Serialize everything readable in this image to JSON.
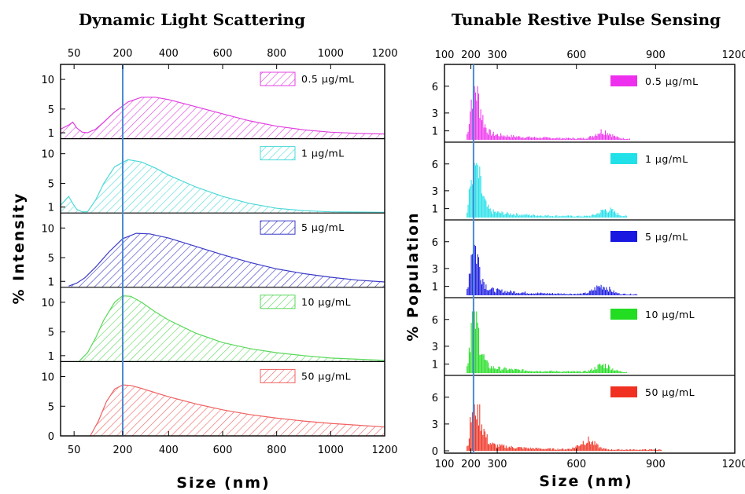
{
  "chart_data": [
    {
      "type": "area",
      "title": "Dynamic Light Scattering",
      "xlabel": "Size (nm)",
      "ylabel": "% Intensity",
      "x_ticks_bottom": [
        "50",
        "200",
        "400",
        "600",
        "800",
        "1000",
        "1200"
      ],
      "x_ticks_top": [
        "50",
        "200",
        "400",
        "600",
        "800",
        "1000",
        "1200"
      ],
      "x_tick_values": [
        50,
        230,
        400,
        600,
        800,
        1000,
        1200
      ],
      "xlim": [
        0,
        1200
      ],
      "reference_line_x": 230,
      "grid": false,
      "legend_placement": "top-right of each subpanel",
      "series": [
        {
          "name": "0.5 µg/mL",
          "color": "#e040e0",
          "y_ticks": [
            "1",
            "5",
            "10"
          ],
          "ylim": [
            0,
            12
          ],
          "x": [
            0,
            30,
            45,
            60,
            80,
            100,
            130,
            160,
            200,
            250,
            300,
            350,
            400,
            500,
            600,
            700,
            800,
            900,
            1000,
            1100,
            1200
          ],
          "values": [
            1.6,
            2.3,
            2.8,
            1.8,
            1.1,
            1.0,
            1.6,
            2.8,
            4.5,
            6.2,
            7.0,
            7.0,
            6.6,
            5.4,
            4.2,
            3.0,
            2.1,
            1.5,
            1.1,
            0.9,
            0.8
          ]
        },
        {
          "name": "1 µg/mL",
          "color": "#4dd8d8",
          "y_ticks": [
            "1",
            "5",
            "10"
          ],
          "ylim": [
            0,
            12
          ],
          "x": [
            0,
            20,
            30,
            45,
            60,
            80,
            100,
            130,
            160,
            200,
            250,
            300,
            350,
            400,
            500,
            600,
            700,
            800,
            900,
            1000,
            1200
          ],
          "values": [
            1.3,
            2.3,
            2.8,
            1.6,
            0.6,
            0.2,
            0.2,
            2.2,
            5.0,
            7.8,
            9.0,
            8.6,
            7.6,
            6.4,
            4.4,
            2.8,
            1.6,
            0.8,
            0.4,
            0.2,
            0.1
          ]
        },
        {
          "name": "5 µg/mL",
          "color": "#3a3ac8",
          "y_ticks": [
            "1",
            "5",
            "10"
          ],
          "ylim": [
            0,
            12
          ],
          "x": [
            30,
            60,
            90,
            130,
            180,
            230,
            280,
            330,
            400,
            500,
            600,
            700,
            800,
            900,
            1000,
            1100,
            1200
          ],
          "values": [
            0.2,
            0.7,
            1.6,
            3.4,
            6.0,
            8.2,
            9.1,
            9.0,
            8.3,
            6.9,
            5.5,
            4.2,
            3.1,
            2.3,
            1.7,
            1.2,
            0.9
          ]
        },
        {
          "name": "10 µg/mL",
          "color": "#5ad85a",
          "y_ticks": [
            "1",
            "5",
            "10"
          ],
          "ylim": [
            0,
            12
          ],
          "x": [
            70,
            100,
            130,
            160,
            200,
            230,
            260,
            300,
            350,
            400,
            500,
            600,
            700,
            800,
            900,
            1000,
            1100,
            1200
          ],
          "values": [
            0.1,
            1.5,
            4.0,
            7.0,
            10.0,
            11.1,
            11.0,
            10.0,
            8.4,
            7.0,
            4.8,
            3.2,
            2.2,
            1.5,
            1.0,
            0.6,
            0.4,
            0.2
          ]
        },
        {
          "name": "50 µg/mL",
          "color": "#f06060",
          "y_ticks": [
            "0",
            "5",
            "10"
          ],
          "ylim": [
            0,
            12
          ],
          "x": [
            110,
            140,
            170,
            200,
            230,
            260,
            300,
            350,
            400,
            500,
            600,
            700,
            800,
            900,
            1000,
            1100,
            1200
          ],
          "values": [
            0.0,
            2.5,
            5.8,
            7.9,
            8.6,
            8.5,
            8.0,
            7.3,
            6.6,
            5.4,
            4.4,
            3.6,
            3.0,
            2.5,
            2.1,
            1.8,
            1.5
          ]
        }
      ]
    },
    {
      "type": "bar",
      "title": "Tunable Restive Pulse Sensing",
      "xlabel": "Size (nm)",
      "ylabel": "% Population",
      "x_ticks_bottom": [
        "100",
        "200",
        "300",
        "600",
        "900",
        "1200"
      ],
      "x_ticks_top": [
        "100",
        "200",
        "300",
        "600",
        "900",
        "1200"
      ],
      "x_tick_values": [
        100,
        200,
        300,
        600,
        900,
        1200
      ],
      "xlim": [
        100,
        1200
      ],
      "reference_line_x": 210,
      "grid": false,
      "legend_placement": "top-right of each subpanel",
      "bin_width": 4,
      "series": [
        {
          "name": "0.5 µg/mL",
          "color": "#ee30ee",
          "y_ticks": [
            "1",
            "3",
            "6"
          ],
          "ylim": [
            0,
            8
          ],
          "peak_x": 210,
          "peak_value": 6.0,
          "secondary_peak_x": 700,
          "secondary_peak_value": 1.0,
          "max_x": 800
        },
        {
          "name": "1 µg/mL",
          "color": "#22e0e8",
          "y_ticks": [
            "1",
            "3",
            "6"
          ],
          "ylim": [
            0,
            8
          ],
          "peak_x": 210,
          "peak_value": 6.1,
          "secondary_peak_x": 715,
          "secondary_peak_value": 0.9,
          "max_x": 790
        },
        {
          "name": "5 µg/mL",
          "color": "#1818e0",
          "y_ticks": [
            "1",
            "3",
            "6"
          ],
          "ylim": [
            0,
            8
          ],
          "peak_x": 205,
          "peak_value": 5.8,
          "secondary_peak_x": 695,
          "secondary_peak_value": 1.1,
          "max_x": 830
        },
        {
          "name": "10 µg/mL",
          "color": "#22dd22",
          "y_ticks": [
            "1",
            "3",
            "6"
          ],
          "ylim": [
            0,
            8
          ],
          "peak_x": 205,
          "peak_value": 6.9,
          "secondary_peak_x": 700,
          "secondary_peak_value": 0.9,
          "max_x": 790
        },
        {
          "name": "50 µg/mL",
          "color": "#f03020",
          "y_ticks": [
            "0",
            "3",
            "6"
          ],
          "ylim": [
            0,
            8
          ],
          "peak_x": 215,
          "peak_value": 5.2,
          "secondary_peak_x": 640,
          "secondary_peak_value": 1.2,
          "max_x": 920
        }
      ]
    }
  ]
}
